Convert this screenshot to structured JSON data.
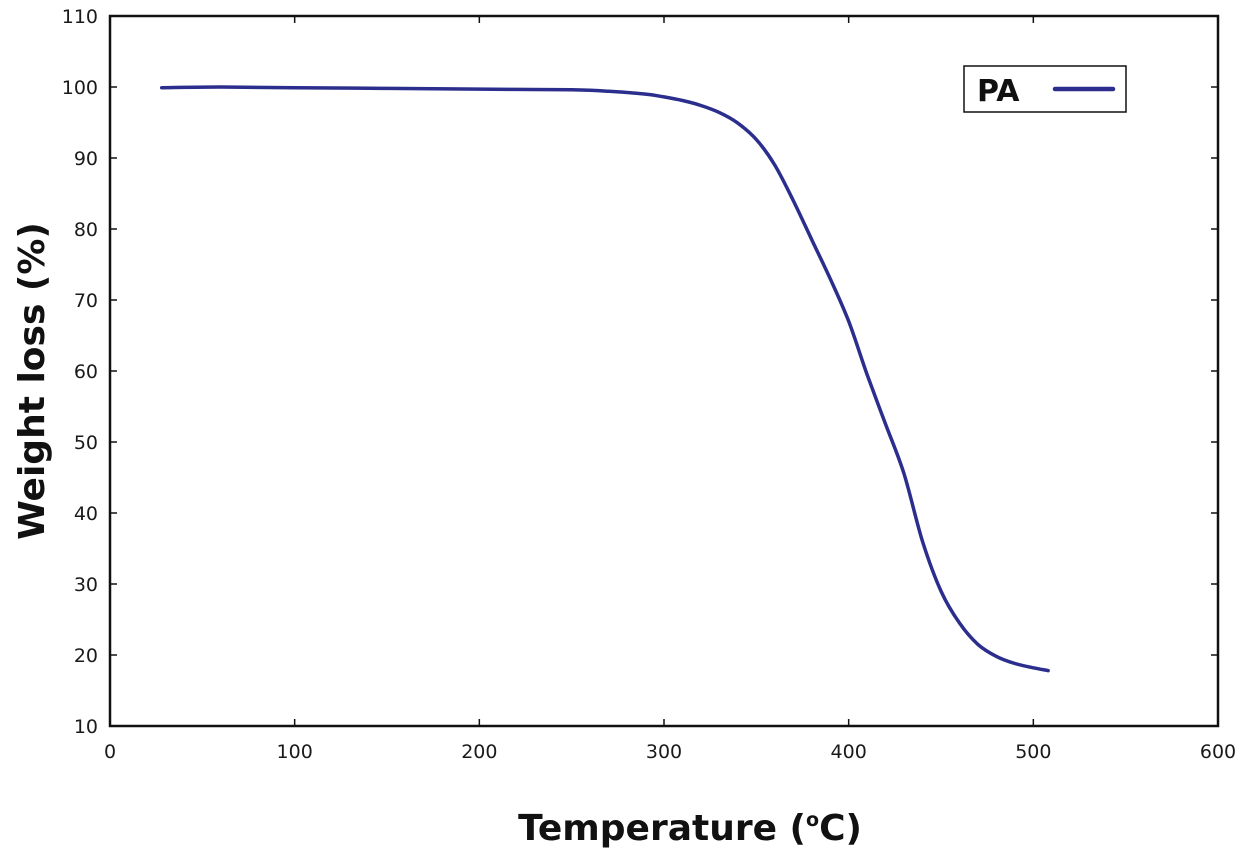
{
  "chart_data": {
    "type": "line",
    "title": "",
    "xlabel": "Temperature (",
    "xlabel_sup": "o",
    "xlabel_suffix": "C)",
    "ylabel": "Weight loss (%)",
    "xlim": [
      0,
      600
    ],
    "ylim": [
      10,
      110
    ],
    "xticks": [
      0,
      100,
      200,
      300,
      400,
      500,
      600
    ],
    "yticks": [
      10,
      20,
      30,
      40,
      50,
      60,
      70,
      80,
      90,
      100,
      110
    ],
    "grid": false,
    "legend_position": "top-right",
    "series": [
      {
        "name": "PA",
        "color": "#2b2e8c",
        "x": [
          28,
          60,
          100,
          150,
          200,
          250,
          270,
          290,
          300,
          310,
          320,
          330,
          340,
          350,
          360,
          370,
          380,
          390,
          400,
          410,
          420,
          430,
          440,
          450,
          460,
          470,
          480,
          490,
          500,
          508
        ],
        "y": [
          99.9,
          100.0,
          99.9,
          99.8,
          99.7,
          99.6,
          99.4,
          99.0,
          98.6,
          98.1,
          97.4,
          96.4,
          94.9,
          92.6,
          89.0,
          84.0,
          78.5,
          73.0,
          67.0,
          59.5,
          52.5,
          45.5,
          36.0,
          29.0,
          24.5,
          21.5,
          19.8,
          18.8,
          18.2,
          17.8
        ]
      }
    ]
  }
}
